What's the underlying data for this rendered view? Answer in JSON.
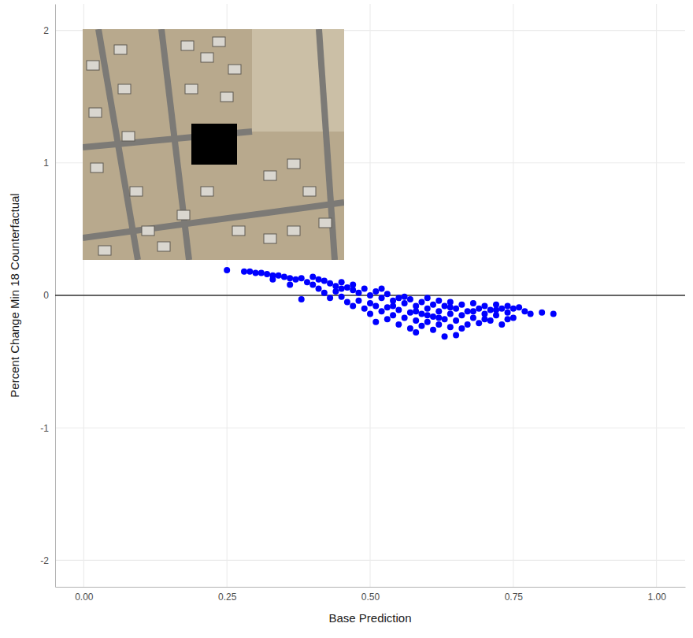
{
  "chart_data": {
    "type": "scatter",
    "x_label": "Base Prediction",
    "y_label": "Percent Change Min 18 Counterfactual",
    "color": "#0000ff",
    "grid": true,
    "hline": 0,
    "xlim": [
      -0.05,
      1.05
    ],
    "ylim": [
      -2.2,
      2.2
    ],
    "xticks": [
      {
        "value": 0,
        "label": "0.00"
      },
      {
        "value": 0.25,
        "label": "0.25"
      },
      {
        "value": 0.5,
        "label": "0.50"
      },
      {
        "value": 0.75,
        "label": "0.75"
      },
      {
        "value": 1,
        "label": "1.00"
      }
    ],
    "yticks": [
      -2,
      -1,
      0,
      1,
      2
    ],
    "x": [
      0.25,
      0.28,
      0.29,
      0.3,
      0.31,
      0.32,
      0.33,
      0.34,
      0.33,
      0.35,
      0.36,
      0.37,
      0.38,
      0.38,
      0.39,
      0.4,
      0.4,
      0.41,
      0.41,
      0.42,
      0.42,
      0.43,
      0.43,
      0.44,
      0.44,
      0.45,
      0.45,
      0.46,
      0.46,
      0.47,
      0.47,
      0.47,
      0.48,
      0.48,
      0.49,
      0.49,
      0.5,
      0.5,
      0.5,
      0.51,
      0.51,
      0.51,
      0.52,
      0.52,
      0.53,
      0.53,
      0.53,
      0.54,
      0.54,
      0.55,
      0.55,
      0.55,
      0.56,
      0.56,
      0.57,
      0.57,
      0.57,
      0.58,
      0.58,
      0.58,
      0.59,
      0.59,
      0.59,
      0.6,
      0.6,
      0.6,
      0.61,
      0.61,
      0.61,
      0.62,
      0.62,
      0.62,
      0.63,
      0.63,
      0.63,
      0.64,
      0.64,
      0.64,
      0.65,
      0.65,
      0.65,
      0.66,
      0.66,
      0.67,
      0.67,
      0.68,
      0.68,
      0.69,
      0.69,
      0.7,
      0.7,
      0.71,
      0.71,
      0.72,
      0.72,
      0.73,
      0.73,
      0.74,
      0.74,
      0.75,
      0.75,
      0.76,
      0.77,
      0.78,
      0.8,
      0.82,
      0.36,
      0.45,
      0.52,
      0.54,
      0.56,
      0.58,
      0.6,
      0.62,
      0.64,
      0.66,
      0.68,
      0.7,
      0.72,
      0.74
    ],
    "values": [
      0.19,
      0.18,
      0.18,
      0.17,
      0.17,
      0.16,
      0.15,
      0.15,
      0.12,
      0.14,
      0.13,
      0.12,
      0.13,
      -0.03,
      0.1,
      0.14,
      0.08,
      0.12,
      0.05,
      0.11,
      0.02,
      0.09,
      -0.02,
      0.07,
      0.03,
      0.1,
      -0.01,
      0.06,
      -0.05,
      0.04,
      -0.08,
      0.08,
      0.02,
      -0.04,
      0.05,
      -0.1,
      0.0,
      -0.06,
      -0.14,
      0.03,
      -0.08,
      -0.2,
      -0.02,
      -0.12,
      0.01,
      -0.09,
      -0.18,
      -0.04,
      -0.15,
      -0.02,
      -0.11,
      -0.22,
      -0.06,
      -0.17,
      -0.03,
      -0.13,
      -0.25,
      -0.08,
      -0.19,
      -0.28,
      -0.05,
      -0.14,
      -0.23,
      -0.02,
      -0.1,
      -0.2,
      -0.07,
      -0.16,
      -0.26,
      -0.04,
      -0.12,
      -0.22,
      -0.08,
      -0.18,
      -0.31,
      -0.05,
      -0.14,
      -0.24,
      -0.1,
      -0.19,
      -0.3,
      -0.07,
      -0.15,
      -0.12,
      -0.22,
      -0.06,
      -0.17,
      -0.1,
      -0.21,
      -0.08,
      -0.14,
      -0.11,
      -0.19,
      -0.07,
      -0.15,
      -0.1,
      -0.22,
      -0.08,
      -0.13,
      -0.1,
      -0.17,
      -0.09,
      -0.12,
      -0.14,
      -0.13,
      -0.14,
      0.08,
      0.05,
      0.05,
      -0.08,
      -0.01,
      -0.12,
      -0.15,
      -0.17,
      -0.09,
      -0.25,
      -0.12,
      -0.18,
      -0.11,
      -0.18
    ]
  }
}
